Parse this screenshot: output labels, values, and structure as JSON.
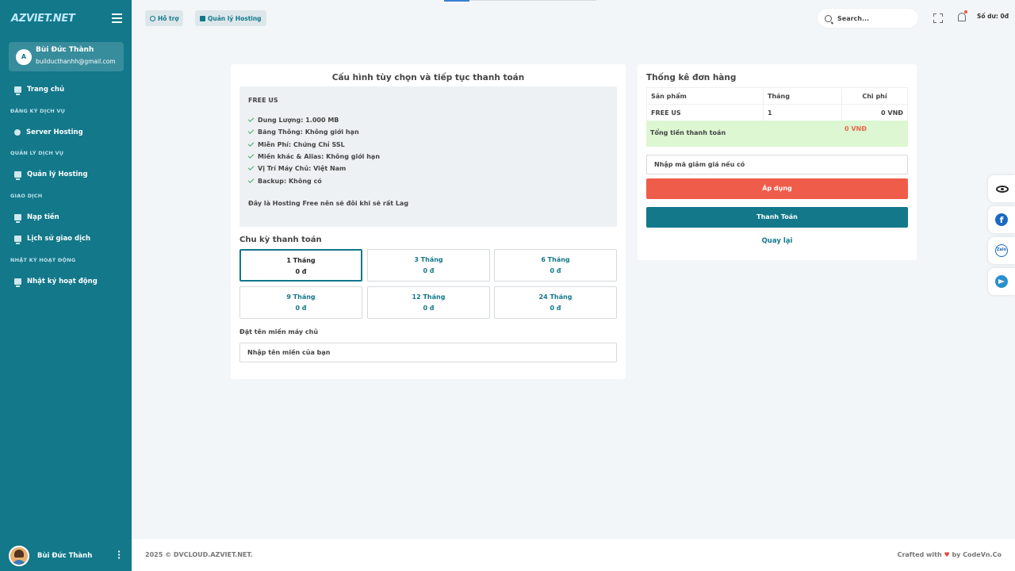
{
  "app": {
    "logo": "AZVIET.NET"
  },
  "sidebar": {
    "user": {
      "avatar_initial": "A",
      "name": "Bùi Đức Thành",
      "email": "builducthanhh@gmail.com"
    },
    "items": [
      {
        "type": "link",
        "label": "Trang chủ",
        "icon": "monitor-icon"
      },
      {
        "type": "section",
        "label": "ĐĂNG KÝ DỊCH VỤ"
      },
      {
        "type": "link",
        "label": "Server Hosting",
        "icon": "circle-arrow-icon"
      },
      {
        "type": "section",
        "label": "QUẢN LÝ DỊCH VỤ"
      },
      {
        "type": "link",
        "label": "Quản lý Hosting",
        "icon": "monitor-icon"
      },
      {
        "type": "section",
        "label": "GIAO DỊCH"
      },
      {
        "type": "link",
        "label": "Nạp tiền",
        "icon": "monitor-icon"
      },
      {
        "type": "link",
        "label": "Lịch sử giao dịch",
        "icon": "monitor-icon"
      },
      {
        "type": "section",
        "label": "NHẬT KÝ HOẠT ĐỘNG"
      },
      {
        "type": "link",
        "label": "Nhật ký hoạt động",
        "icon": "monitor-icon"
      }
    ],
    "footer_name": "Bùi Đức Thành"
  },
  "topbar": {
    "support_label": "Hỗ trợ",
    "hosting_label": "Quản lý Hosting",
    "search_placeholder": "Search...",
    "balance": "Số dư: 0đ"
  },
  "config": {
    "title": "Cấu hình tùy chọn và tiếp tục thanh toán",
    "plan_name": "FREE US",
    "features": [
      "Dung Lượng: 1.000 MB",
      "Băng Thông: Không giới hạn",
      "Miễn Phí: Chứng Chỉ SSL",
      "Miền khác & Alias: Không giới hạn",
      "Vị Trí Máy Chủ: Việt Nam",
      "Backup: Không có"
    ],
    "note": "Đây là Hosting Free nên sẽ đôi khi sẽ rất Lag",
    "cycle_title": "Chu kỳ thanh toán",
    "cycles": [
      {
        "label": "1 Tháng",
        "price": "0 đ",
        "selected": true
      },
      {
        "label": "3 Tháng",
        "price": "0 đ",
        "selected": false
      },
      {
        "label": "6 Tháng",
        "price": "0 đ",
        "selected": false
      },
      {
        "label": "9 Tháng",
        "price": "0 đ",
        "selected": false
      },
      {
        "label": "12 Tháng",
        "price": "0 đ",
        "selected": false
      },
      {
        "label": "24 Tháng",
        "price": "0 đ",
        "selected": false
      }
    ],
    "domain_label": "Đặt tên miền máy chủ",
    "domain_placeholder": "Nhập tên miền của bạn"
  },
  "summary": {
    "title": "Thống kê đơn hàng",
    "columns": [
      "Sản phẩm",
      "Tháng",
      "Chi phí"
    ],
    "rows": [
      [
        "FREE US",
        "1",
        "0 VNĐ"
      ]
    ],
    "total_label": "Tổng tiền thanh toán",
    "total_value": "0 VNĐ",
    "coupon_placeholder": "Nhập mã giảm giá nếu có",
    "apply_label": "Áp dụng",
    "pay_label": "Thanh Toán",
    "back_label": "Quay lại"
  },
  "float_icons": [
    "eye-icon",
    "facebook-icon",
    "zalo-icon",
    "telegram-icon"
  ],
  "zalo_text": "Zalo",
  "footer": {
    "copyright": "2025 © DVCLOUD.AZVIET.NET.",
    "credit_prefix": "Crafted with",
    "credit_suffix": "by CodeVn.Co"
  },
  "colors": {
    "primary": "#12788a",
    "danger": "#ef5d4a",
    "success_bg": "#dcf7d2"
  }
}
